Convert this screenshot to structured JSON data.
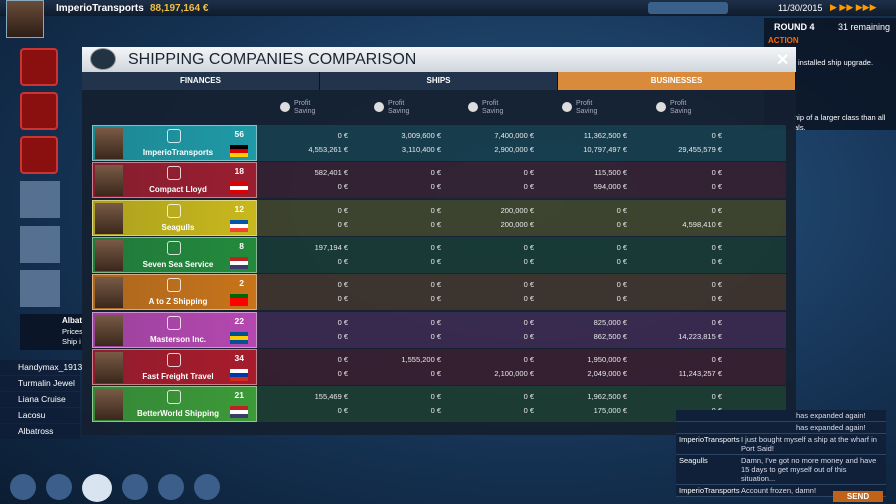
{
  "top_bar": {
    "company": "ImperioTransports",
    "money": "88,197,164 €",
    "date": "11/30/2015"
  },
  "round_panel": {
    "round": "ROUND 4",
    "remaining": "31 remaining",
    "action": "ACTION",
    "lines": [
      "installed ship upgrade.",
      "hip of a larger class than all",
      "als."
    ]
  },
  "sidebar": {
    "notification": {
      "title": "Albat",
      "lines": [
        "Prices",
        "Ship i"
      ]
    },
    "ships": [
      "Handymax_1913",
      "Turmalin Jewel",
      "Liana Cruise",
      "Lacosu",
      "Albatross"
    ]
  },
  "dialog": {
    "title": "SHIPPING COMPANIES COMPARISON",
    "tabs": [
      "FINANCES",
      "SHIPS",
      "BUSINESSES"
    ],
    "columns": [
      {
        "line1": "Profit",
        "line2": "Saving"
      },
      {
        "line1": "Profit",
        "line2": "Saving"
      },
      {
        "line1": "Profit",
        "line2": "Saving"
      },
      {
        "line1": "Profit",
        "line2": "Saving"
      },
      {
        "line1": "Profit",
        "line2": "Saving"
      }
    ],
    "companies": [
      {
        "name": "ImperioTransports",
        "rank": "56",
        "row1": [
          "0 €",
          "3,009,600 €",
          "7,400,000 €",
          "11,362,500 €",
          "0 €"
        ],
        "row2": [
          "4,553,261 €",
          "3,110,400 €",
          "2,900,000 €",
          "10,797,497 €",
          "29,455,579 €"
        ]
      },
      {
        "name": "Compact Lloyd",
        "rank": "18",
        "row1": [
          "582,401 €",
          "0 €",
          "0 €",
          "115,500 €",
          "0 €"
        ],
        "row2": [
          "0 €",
          "0 €",
          "0 €",
          "594,000 €",
          "0 €"
        ]
      },
      {
        "name": "Seagulls",
        "rank": "12",
        "row1": [
          "0 €",
          "0 €",
          "200,000 €",
          "0 €",
          "0 €"
        ],
        "row2": [
          "0 €",
          "0 €",
          "200,000 €",
          "0 €",
          "4,598,410 €"
        ]
      },
      {
        "name": "Seven Sea Service",
        "rank": "8",
        "row1": [
          "197,194 €",
          "0 €",
          "0 €",
          "0 €",
          "0 €"
        ],
        "row2": [
          "0 €",
          "0 €",
          "0 €",
          "0 €",
          "0 €"
        ]
      },
      {
        "name": "A to Z Shipping",
        "rank": "2",
        "row1": [
          "0 €",
          "0 €",
          "0 €",
          "0 €",
          "0 €"
        ],
        "row2": [
          "0 €",
          "0 €",
          "0 €",
          "0 €",
          "0 €"
        ]
      },
      {
        "name": "Masterson Inc.",
        "rank": "22",
        "row1": [
          "0 €",
          "0 €",
          "0 €",
          "825,000 €",
          "0 €"
        ],
        "row2": [
          "0 €",
          "0 €",
          "0 €",
          "862,500 €",
          "14,223,815 €"
        ]
      },
      {
        "name": "Fast Freight Travel",
        "rank": "34",
        "row1": [
          "0 €",
          "1,555,200 €",
          "0 €",
          "1,950,000 €",
          "0 €"
        ],
        "row2": [
          "0 €",
          "0 €",
          "2,100,000 €",
          "2,049,000 €",
          "11,243,257 €"
        ]
      },
      {
        "name": "BetterWorld Shipping",
        "rank": "21",
        "row1": [
          "155,469 €",
          "0 €",
          "0 €",
          "1,962,500 €",
          "0 €"
        ],
        "row2": [
          "0 €",
          "0 €",
          "0 €",
          "175,000 €",
          "0 €"
        ]
      }
    ]
  },
  "chat": {
    "messages": [
      {
        "text": "has expanded again!"
      },
      {
        "text": "has expanded again!"
      },
      {
        "sender": "ImperioTransports",
        "text": "I just bought myself a ship at the wharf in Port Said!"
      },
      {
        "sender": "Seagulls",
        "text": "Damn, I've got no more money and have 15 days to get myself out of this situation..."
      },
      {
        "sender": "ImperioTransports",
        "text": "Account frozen, damn!"
      }
    ],
    "send": "SEND"
  }
}
